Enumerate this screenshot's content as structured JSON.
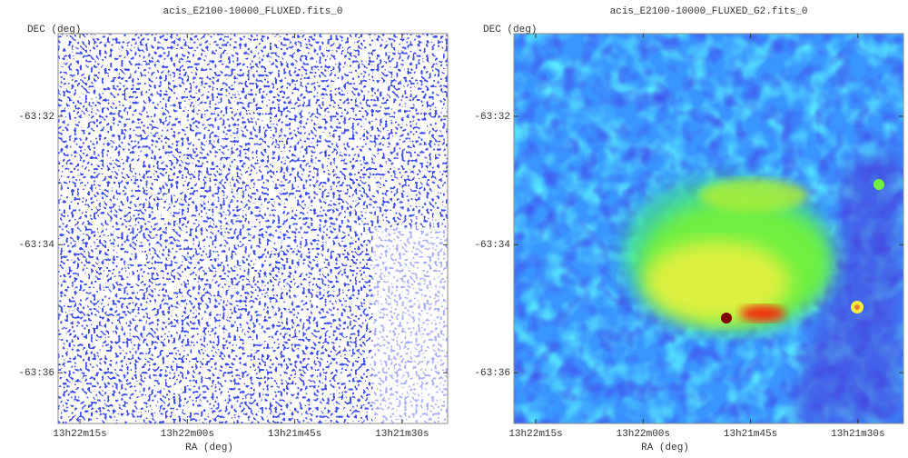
{
  "chart_data": [
    {
      "type": "image",
      "title": "acis_E2100-10000_FLUXED.fits_0",
      "xlabel": "RA (deg)",
      "ylabel": "DEC (deg)",
      "xlim": [
        200.5752,
        200.3485
      ],
      "ylim": [
        -63.6132,
        -63.5118
      ],
      "xticks": [
        {
          "value": 200.5625,
          "label": "13h22m15s"
        },
        {
          "value": 200.5,
          "label": "13h22m00s"
        },
        {
          "value": 200.4375,
          "label": "13h21m45s"
        },
        {
          "value": 200.375,
          "label": "13h21m30s"
        }
      ],
      "yticks": [
        {
          "value": -63.5333,
          "label": "-63:32"
        },
        {
          "value": -63.5667,
          "label": "-63:34"
        },
        {
          "value": -63.6,
          "label": "-63:36"
        }
      ],
      "style": "counts"
    },
    {
      "type": "image",
      "title": "acis_E2100-10000_FLUXED_G2.fits_0",
      "xlabel": "RA (deg)",
      "ylabel": "DEC (deg)",
      "xlim": [
        200.5752,
        200.3485
      ],
      "ylim": [
        -63.6132,
        -63.5118
      ],
      "xticks": [
        {
          "value": 200.5625,
          "label": "13h22m15s"
        },
        {
          "value": 200.5,
          "label": "13h22m00s"
        },
        {
          "value": 200.4375,
          "label": "13h21m45s"
        },
        {
          "value": 200.375,
          "label": "13h21m30s"
        }
      ],
      "yticks": [
        {
          "value": -63.5333,
          "label": "-63:32"
        },
        {
          "value": -63.5667,
          "label": "-63:34"
        },
        {
          "value": -63.6,
          "label": "-63:36"
        }
      ],
      "style": "smoothed"
    }
  ]
}
